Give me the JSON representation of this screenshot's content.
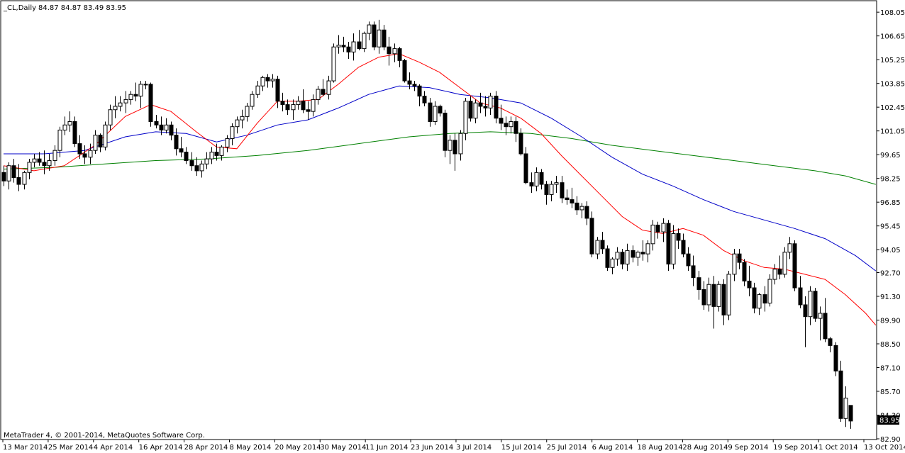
{
  "header": {
    "symbol": "_CL,Daily",
    "ohlc": "84.87 84.87 83.49 83.95"
  },
  "footer": {
    "copyright": "MetaTrader 4, © 2001-2014, MetaQuotes Software Corp."
  },
  "current_price_label": "83.95",
  "colors": {
    "background": "#ffffff",
    "candle": "#000000",
    "ma_fast": "#ff0000",
    "ma_mid": "#0000c8",
    "ma_slow": "#008000"
  },
  "chart_data": {
    "type": "candlestick",
    "ylim": [
      82.9,
      108.6
    ],
    "y_ticks": [
      "108.05",
      "106.65",
      "105.25",
      "103.85",
      "102.45",
      "101.05",
      "99.65",
      "98.25",
      "96.85",
      "95.45",
      "94.05",
      "92.70",
      "91.30",
      "89.90",
      "88.50",
      "87.10",
      "85.70",
      "84.30",
      "82.90"
    ],
    "x_ticks": [
      "13 Mar 2014",
      "25 Mar 2014",
      "4 Apr 2014",
      "16 Apr 2014",
      "28 Apr 2014",
      "8 May 2014",
      "20 May 2014",
      "30 May 2014",
      "11 Jun 2014",
      "23 Jun 2014",
      "3 Jul 2014",
      "15 Jul 2014",
      "25 Jul 2014",
      "6 Aug 2014",
      "18 Aug 2014",
      "28 Aug 2014",
      "9 Sep 2014",
      "19 Sep 2014",
      "1 Oct 2014",
      "13 Oct 2014"
    ],
    "candles": [
      [
        98.6,
        99.0,
        97.8,
        98.1
      ],
      [
        98.1,
        99.2,
        97.6,
        99.0
      ],
      [
        99.0,
        99.4,
        98.0,
        98.3
      ],
      [
        98.3,
        99.1,
        97.5,
        97.9
      ],
      [
        97.9,
        98.7,
        97.6,
        98.6
      ],
      [
        98.6,
        99.4,
        98.2,
        99.2
      ],
      [
        99.2,
        99.7,
        98.9,
        99.4
      ],
      [
        99.4,
        99.8,
        99.0,
        99.2
      ],
      [
        99.2,
        99.9,
        98.5,
        99.0
      ],
      [
        99.0,
        99.7,
        98.7,
        99.3
      ],
      [
        99.3,
        100.2,
        99.0,
        99.9
      ],
      [
        99.9,
        101.3,
        99.5,
        101.1
      ],
      [
        101.1,
        101.9,
        100.8,
        101.4
      ],
      [
        101.4,
        102.2,
        101.0,
        101.6
      ],
      [
        101.6,
        101.9,
        100.1,
        100.3
      ],
      [
        100.3,
        100.8,
        99.4,
        99.7
      ],
      [
        99.7,
        100.2,
        99.1,
        99.5
      ],
      [
        99.5,
        100.3,
        99.1,
        99.9
      ],
      [
        99.9,
        101.1,
        99.7,
        100.8
      ],
      [
        100.8,
        100.9,
        99.8,
        100.1
      ],
      [
        100.1,
        101.6,
        99.9,
        101.4
      ],
      [
        101.4,
        102.6,
        101.1,
        102.3
      ],
      [
        102.3,
        103.1,
        101.8,
        102.5
      ],
      [
        102.5,
        103.1,
        102.2,
        102.7
      ],
      [
        102.7,
        103.4,
        102.1,
        102.9
      ],
      [
        102.9,
        103.4,
        102.6,
        103.2
      ],
      [
        103.2,
        103.9,
        102.8,
        103.1
      ],
      [
        103.1,
        104.0,
        102.4,
        103.8
      ],
      [
        103.8,
        104.0,
        103.5,
        103.8
      ],
      [
        103.8,
        103.9,
        101.3,
        101.6
      ],
      [
        101.6,
        102.0,
        101.2,
        101.4
      ],
      [
        101.4,
        101.9,
        100.8,
        101.1
      ],
      [
        101.1,
        101.8,
        100.9,
        101.4
      ],
      [
        101.4,
        101.6,
        100.5,
        100.8
      ],
      [
        100.8,
        101.2,
        99.6,
        100.0
      ],
      [
        100.0,
        100.7,
        99.5,
        99.8
      ],
      [
        99.8,
        100.1,
        99.1,
        99.3
      ],
      [
        99.3,
        99.8,
        98.7,
        99.0
      ],
      [
        99.0,
        99.5,
        98.4,
        98.7
      ],
      [
        98.7,
        99.3,
        98.3,
        99.1
      ],
      [
        99.1,
        99.8,
        98.8,
        99.4
      ],
      [
        99.4,
        100.1,
        99.1,
        99.8
      ],
      [
        99.8,
        100.3,
        99.3,
        99.6
      ],
      [
        99.6,
        100.2,
        99.3,
        100.1
      ],
      [
        100.1,
        100.8,
        99.8,
        100.6
      ],
      [
        100.6,
        101.5,
        100.2,
        101.3
      ],
      [
        101.3,
        101.9,
        100.9,
        101.7
      ],
      [
        101.7,
        102.3,
        101.2,
        101.9
      ],
      [
        101.9,
        102.7,
        101.6,
        102.5
      ],
      [
        102.5,
        103.4,
        102.3,
        103.2
      ],
      [
        103.2,
        104.0,
        103.0,
        103.7
      ],
      [
        103.7,
        104.3,
        103.4,
        104.2
      ],
      [
        104.2,
        104.4,
        103.6,
        104.0
      ],
      [
        104.0,
        104.4,
        103.6,
        104.1
      ],
      [
        104.1,
        104.3,
        102.4,
        102.8
      ],
      [
        102.8,
        103.3,
        102.2,
        102.6
      ],
      [
        102.6,
        102.9,
        102.0,
        102.3
      ],
      [
        102.3,
        102.9,
        101.7,
        102.6
      ],
      [
        102.6,
        103.1,
        102.3,
        102.8
      ],
      [
        102.8,
        103.5,
        102.1,
        102.3
      ],
      [
        102.3,
        102.8,
        101.7,
        102.2
      ],
      [
        102.2,
        103.2,
        101.9,
        102.9
      ],
      [
        102.9,
        103.7,
        102.6,
        103.5
      ],
      [
        103.5,
        104.1,
        103.1,
        103.2
      ],
      [
        103.2,
        104.3,
        102.9,
        104.0
      ],
      [
        104.0,
        106.2,
        103.9,
        106.0
      ],
      [
        106.0,
        106.7,
        105.6,
        106.1
      ],
      [
        106.1,
        106.6,
        105.7,
        106.0
      ],
      [
        106.0,
        106.3,
        105.3,
        105.7
      ],
      [
        105.7,
        106.8,
        105.2,
        106.3
      ],
      [
        106.3,
        107.0,
        105.8,
        105.9
      ],
      [
        105.9,
        106.9,
        105.7,
        106.8
      ],
      [
        106.8,
        107.5,
        106.4,
        107.3
      ],
      [
        107.3,
        107.5,
        105.8,
        106.0
      ],
      [
        106.0,
        107.6,
        105.6,
        107.0
      ],
      [
        107.0,
        107.3,
        105.8,
        106.0
      ],
      [
        106.0,
        106.6,
        104.9,
        105.6
      ],
      [
        105.6,
        106.2,
        105.1,
        105.9
      ],
      [
        105.9,
        106.0,
        104.8,
        105.2
      ],
      [
        105.2,
        105.3,
        103.9,
        104.0
      ],
      [
        104.0,
        104.5,
        103.5,
        103.8
      ],
      [
        103.8,
        104.0,
        103.4,
        103.7
      ],
      [
        103.7,
        103.8,
        102.5,
        103.1
      ],
      [
        103.1,
        103.4,
        102.5,
        102.7
      ],
      [
        102.7,
        103.0,
        101.3,
        101.6
      ],
      [
        101.6,
        102.8,
        101.4,
        102.5
      ],
      [
        102.5,
        102.6,
        101.9,
        102.1
      ],
      [
        102.1,
        102.3,
        99.5,
        99.9
      ],
      [
        99.9,
        100.8,
        99.1,
        100.5
      ],
      [
        100.5,
        100.9,
        98.7,
        99.7
      ],
      [
        99.7,
        101.1,
        99.3,
        100.9
      ],
      [
        100.9,
        103.0,
        100.5,
        102.8
      ],
      [
        102.8,
        103.1,
        101.6,
        101.8
      ],
      [
        101.8,
        102.9,
        101.5,
        102.7
      ],
      [
        102.7,
        103.3,
        102.1,
        102.5
      ],
      [
        102.5,
        103.1,
        101.9,
        102.4
      ],
      [
        102.4,
        103.3,
        102.0,
        103.1
      ],
      [
        103.1,
        103.4,
        101.5,
        101.8
      ],
      [
        101.8,
        102.6,
        101.1,
        101.5
      ],
      [
        101.5,
        101.9,
        100.8,
        101.3
      ],
      [
        101.3,
        101.9,
        100.9,
        101.6
      ],
      [
        101.6,
        101.9,
        100.4,
        100.9
      ],
      [
        100.9,
        101.2,
        99.6,
        99.7
      ],
      [
        99.7,
        100.1,
        97.9,
        98.0
      ],
      [
        98.0,
        98.6,
        97.4,
        97.8
      ],
      [
        97.8,
        98.9,
        97.5,
        98.6
      ],
      [
        98.6,
        98.8,
        97.6,
        97.9
      ],
      [
        97.9,
        98.1,
        96.7,
        97.3
      ],
      [
        97.3,
        98.1,
        96.9,
        97.9
      ],
      [
        97.9,
        98.4,
        97.4,
        98.0
      ],
      [
        98.0,
        98.4,
        96.8,
        97.1
      ],
      [
        97.1,
        97.6,
        96.7,
        97.0
      ],
      [
        97.0,
        97.7,
        96.5,
        96.8
      ],
      [
        96.8,
        97.2,
        96.1,
        96.4
      ],
      [
        96.4,
        96.8,
        95.9,
        96.6
      ],
      [
        96.6,
        96.9,
        95.5,
        95.9
      ],
      [
        95.9,
        96.3,
        93.6,
        93.8
      ],
      [
        93.8,
        94.8,
        93.5,
        94.6
      ],
      [
        94.6,
        95.1,
        93.8,
        94.1
      ],
      [
        94.1,
        94.3,
        92.8,
        93.0
      ],
      [
        93.0,
        93.6,
        92.6,
        93.5
      ],
      [
        93.5,
        94.2,
        93.1,
        93.9
      ],
      [
        93.9,
        94.1,
        92.9,
        93.2
      ],
      [
        93.2,
        94.4,
        92.8,
        94.0
      ],
      [
        94.0,
        94.3,
        93.3,
        93.6
      ],
      [
        93.6,
        94.0,
        93.1,
        93.9
      ],
      [
        93.9,
        94.6,
        93.4,
        93.8
      ],
      [
        93.8,
        94.6,
        93.3,
        94.4
      ],
      [
        94.4,
        95.8,
        94.0,
        95.5
      ],
      [
        95.5,
        95.7,
        94.7,
        95.1
      ],
      [
        95.1,
        95.9,
        94.5,
        95.6
      ],
      [
        95.6,
        95.8,
        92.8,
        93.2
      ],
      [
        93.2,
        95.5,
        92.9,
        95.0
      ],
      [
        95.0,
        95.3,
        94.1,
        94.6
      ],
      [
        94.6,
        95.0,
        93.6,
        93.8
      ],
      [
        93.8,
        94.2,
        92.8,
        93.1
      ],
      [
        93.1,
        93.7,
        91.9,
        92.4
      ],
      [
        92.4,
        92.8,
        91.1,
        91.7
      ],
      [
        91.7,
        92.2,
        90.5,
        90.8
      ],
      [
        90.8,
        92.4,
        90.4,
        92.0
      ],
      [
        92.0,
        92.5,
        89.4,
        90.7
      ],
      [
        90.7,
        92.2,
        90.4,
        92.0
      ],
      [
        92.0,
        92.3,
        89.6,
        90.2
      ],
      [
        90.2,
        92.8,
        89.9,
        92.6
      ],
      [
        92.6,
        94.1,
        92.2,
        93.8
      ],
      [
        93.8,
        94.1,
        92.9,
        93.3
      ],
      [
        93.3,
        93.5,
        91.9,
        92.2
      ],
      [
        92.2,
        93.1,
        91.3,
        91.8
      ],
      [
        91.8,
        92.1,
        90.3,
        90.6
      ],
      [
        90.6,
        91.5,
        90.2,
        91.4
      ],
      [
        91.4,
        91.9,
        90.4,
        90.9
      ],
      [
        90.9,
        92.6,
        90.7,
        92.3
      ],
      [
        92.3,
        93.2,
        92.0,
        92.9
      ],
      [
        92.9,
        93.7,
        92.3,
        92.6
      ],
      [
        92.6,
        94.2,
        92.4,
        93.9
      ],
      [
        93.9,
        94.8,
        93.5,
        94.4
      ],
      [
        94.4,
        94.6,
        91.6,
        91.8
      ],
      [
        91.8,
        92.5,
        90.6,
        90.8
      ],
      [
        90.8,
        91.3,
        88.3,
        90.1
      ],
      [
        90.1,
        91.9,
        89.6,
        91.6
      ],
      [
        91.6,
        91.8,
        89.8,
        90.0
      ],
      [
        90.0,
        90.7,
        88.7,
        90.3
      ],
      [
        90.3,
        91.2,
        88.6,
        88.8
      ],
      [
        88.8,
        88.9,
        88.0,
        88.4
      ],
      [
        88.4,
        88.6,
        86.6,
        86.9
      ],
      [
        86.9,
        87.5,
        83.9,
        84.1
      ],
      [
        84.1,
        86.0,
        83.6,
        85.3
      ],
      [
        84.87,
        84.87,
        83.49,
        83.95
      ]
    ],
    "ma_fast": [
      [
        0,
        99.0
      ],
      [
        6,
        98.7
      ],
      [
        12,
        99.0
      ],
      [
        18,
        100.2
      ],
      [
        24,
        101.9
      ],
      [
        29,
        102.6
      ],
      [
        33,
        102.2
      ],
      [
        38,
        101.0
      ],
      [
        42,
        100.1
      ],
      [
        46,
        100.0
      ],
      [
        50,
        101.5
      ],
      [
        54,
        102.8
      ],
      [
        58,
        102.8
      ],
      [
        62,
        102.9
      ],
      [
        66,
        103.8
      ],
      [
        70,
        104.8
      ],
      [
        74,
        105.4
      ],
      [
        78,
        105.6
      ],
      [
        82,
        105.1
      ],
      [
        86,
        104.5
      ],
      [
        90,
        103.6
      ],
      [
        94,
        102.7
      ],
      [
        98,
        102.4
      ],
      [
        102,
        101.8
      ],
      [
        106,
        100.9
      ],
      [
        110,
        99.6
      ],
      [
        114,
        98.4
      ],
      [
        118,
        97.2
      ],
      [
        122,
        96.0
      ],
      [
        126,
        95.2
      ],
      [
        130,
        95.0
      ],
      [
        134,
        95.3
      ],
      [
        138,
        94.9
      ],
      [
        142,
        94.0
      ],
      [
        146,
        93.4
      ],
      [
        150,
        93.0
      ],
      [
        154,
        92.9
      ],
      [
        158,
        92.6
      ],
      [
        162,
        92.3
      ],
      [
        166,
        91.4
      ],
      [
        170,
        90.3
      ],
      [
        172,
        89.6
      ]
    ],
    "ma_mid": [
      [
        0,
        99.7
      ],
      [
        8,
        99.7
      ],
      [
        16,
        99.9
      ],
      [
        24,
        100.7
      ],
      [
        30,
        101.0
      ],
      [
        36,
        100.9
      ],
      [
        42,
        100.4
      ],
      [
        48,
        100.8
      ],
      [
        54,
        101.4
      ],
      [
        60,
        101.7
      ],
      [
        66,
        102.4
      ],
      [
        72,
        103.2
      ],
      [
        78,
        103.7
      ],
      [
        84,
        103.6
      ],
      [
        90,
        103.2
      ],
      [
        96,
        103.0
      ],
      [
        102,
        102.7
      ],
      [
        108,
        101.8
      ],
      [
        114,
        100.7
      ],
      [
        120,
        99.5
      ],
      [
        126,
        98.5
      ],
      [
        132,
        97.8
      ],
      [
        138,
        97.0
      ],
      [
        144,
        96.3
      ],
      [
        150,
        95.8
      ],
      [
        156,
        95.3
      ],
      [
        162,
        94.7
      ],
      [
        168,
        93.7
      ],
      [
        172,
        92.8
      ]
    ],
    "ma_slow": [
      [
        0,
        98.8
      ],
      [
        10,
        98.9
      ],
      [
        20,
        99.1
      ],
      [
        30,
        99.3
      ],
      [
        40,
        99.4
      ],
      [
        50,
        99.6
      ],
      [
        60,
        99.9
      ],
      [
        70,
        100.3
      ],
      [
        80,
        100.7
      ],
      [
        88,
        100.9
      ],
      [
        96,
        101.0
      ],
      [
        104,
        100.9
      ],
      [
        112,
        100.6
      ],
      [
        120,
        100.2
      ],
      [
        128,
        99.9
      ],
      [
        136,
        99.6
      ],
      [
        144,
        99.3
      ],
      [
        152,
        99.0
      ],
      [
        160,
        98.7
      ],
      [
        166,
        98.4
      ],
      [
        172,
        97.9
      ]
    ]
  }
}
